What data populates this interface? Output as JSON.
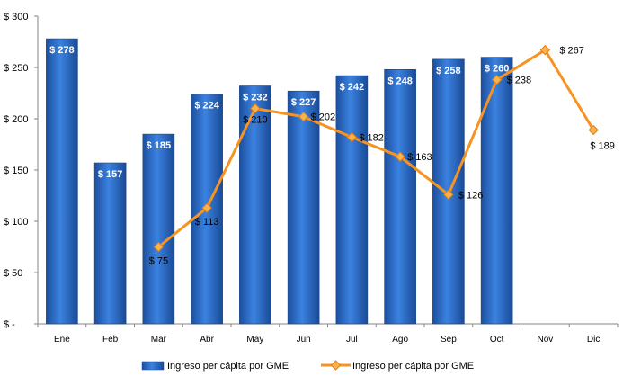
{
  "chart_data": {
    "type": "bar",
    "categories": [
      "Ene",
      "Feb",
      "Mar",
      "Abr",
      "May",
      "Jun",
      "Jul",
      "Ago",
      "Sep",
      "Oct",
      "Nov",
      "Dic"
    ],
    "ylim": [
      0,
      300
    ],
    "yticks": [
      0,
      50,
      100,
      150,
      200,
      250,
      300
    ],
    "ytick_labels": [
      "$ -",
      "$ 50",
      "$ 100",
      "$ 150",
      "$ 200",
      "$ 250",
      "$ 300"
    ],
    "grid": false,
    "legend_position": "bottom",
    "series": [
      {
        "name": "Ingreso per cápita por GME",
        "type": "bar",
        "color": "#2e6fcf",
        "values": [
          278,
          157,
          185,
          224,
          232,
          227,
          242,
          248,
          258,
          260,
          null,
          null
        ],
        "labels": [
          "$ 278",
          "$ 157",
          "$ 185",
          "$ 224",
          "$ 232",
          "$ 227",
          "$ 242",
          "$ 248",
          "$ 258",
          "$ 260",
          "",
          ""
        ]
      },
      {
        "name": "Ingreso per cápita por GME",
        "type": "line",
        "color": "#f79321",
        "values": [
          null,
          null,
          75,
          113,
          210,
          202,
          182,
          163,
          126,
          238,
          267,
          189
        ],
        "labels": [
          "",
          "",
          "$ 75",
          "$ 113",
          "$ 210",
          "$ 202",
          "$ 182",
          "$ 163",
          "$ 126",
          "$ 238",
          "$ 267",
          "$ 189"
        ]
      }
    ]
  }
}
